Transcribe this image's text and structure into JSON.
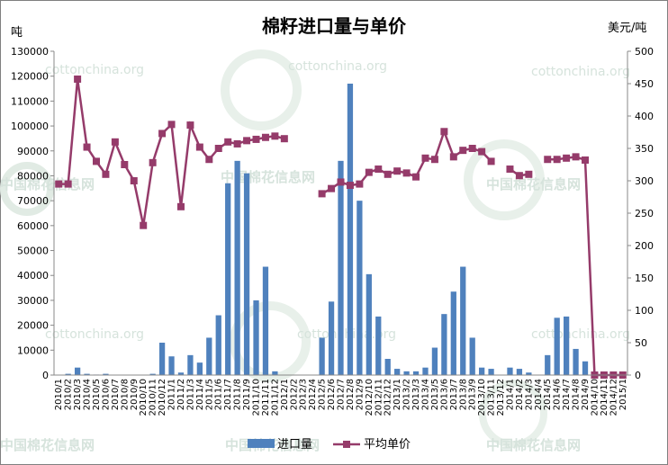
{
  "chart_data": {
    "type": "bar+line",
    "title": "棉籽进口量与单价",
    "y_left_unit": "吨",
    "y_right_unit": "美元/吨",
    "y_left_ticks": [
      "0",
      "10000",
      "20000",
      "30000",
      "40000",
      "50000",
      "60000",
      "70000",
      "80000",
      "90000",
      "100000",
      "110000",
      "120000",
      "130000"
    ],
    "y_right_ticks": [
      "0",
      "50",
      "100",
      "150",
      "200",
      "250",
      "300",
      "350",
      "400",
      "450",
      "500"
    ],
    "y_left_range": [
      0,
      130000
    ],
    "y_right_range": [
      0,
      500
    ],
    "watermark": [
      "cottonchina.org",
      "中国棉花信息网"
    ],
    "categories": [
      "2010/1",
      "2010/2",
      "2010/3",
      "2010/4",
      "2010/5",
      "2010/6",
      "2010/7",
      "2010/8",
      "2010/9",
      "2010/10",
      "2010/11",
      "2010/12",
      "2011/1",
      "2011/2",
      "2011/3",
      "2011/4",
      "2011/5",
      "2011/6",
      "2011/7",
      "2011/8",
      "2011/9",
      "2011/10",
      "2011/11",
      "2011/12",
      "2012/1",
      "2012/2",
      "2012/3",
      "2012/4",
      "2012/5",
      "2012/6",
      "2012/7",
      "2012/8",
      "2012/9",
      "2012/10",
      "2012/11",
      "2012/12",
      "2013/1",
      "2013/2",
      "2013/3",
      "2013/4",
      "2013/5",
      "2013/6",
      "2013/7",
      "2013/8",
      "2013/9",
      "2013/10",
      "2013/11",
      "2013/12",
      "2014/1",
      "2014/2",
      "2014/3",
      "2014/4",
      "2014/5",
      "2014/6",
      "2014/7",
      "2014/8",
      "2014/9",
      "2014/10",
      "2014/11",
      "2014/12",
      "2015/1"
    ],
    "series": [
      {
        "name": "进口量",
        "kind": "bar",
        "axis": "left",
        "color": "#4f81bd",
        "values": [
          0,
          500,
          3000,
          500,
          200,
          500,
          0,
          0,
          0,
          0,
          500,
          13000,
          7500,
          1000,
          8000,
          5000,
          15000,
          24000,
          77000,
          86000,
          81000,
          30000,
          43500,
          1500,
          0,
          0,
          0,
          0,
          15000,
          29500,
          86000,
          117000,
          70000,
          40500,
          23500,
          6500,
          2500,
          1500,
          1500,
          3000,
          11000,
          24500,
          33500,
          43500,
          15000,
          3000,
          2500,
          0,
          3000,
          2500,
          1000,
          0,
          8000,
          23000,
          23500,
          10500,
          5500,
          0,
          0,
          0,
          0
        ]
      },
      {
        "name": "平均单价",
        "kind": "line",
        "axis": "right",
        "color": "#953b6a",
        "values": [
          295,
          295,
          457,
          352,
          330,
          310,
          360,
          325,
          300,
          231,
          328,
          373,
          387,
          260,
          386,
          352,
          333,
          350,
          360,
          357,
          362,
          364,
          367,
          369,
          365,
          null,
          null,
          null,
          280,
          288,
          298,
          293,
          295,
          313,
          318,
          310,
          315,
          312,
          306,
          335,
          333,
          376,
          337,
          347,
          350,
          345,
          330,
          null,
          318,
          308,
          310,
          null,
          333,
          333,
          335,
          337,
          332,
          0,
          0,
          0,
          0
        ]
      }
    ],
    "legend": {
      "position": "bottom",
      "items": [
        "进口量",
        "平均单价"
      ]
    }
  }
}
